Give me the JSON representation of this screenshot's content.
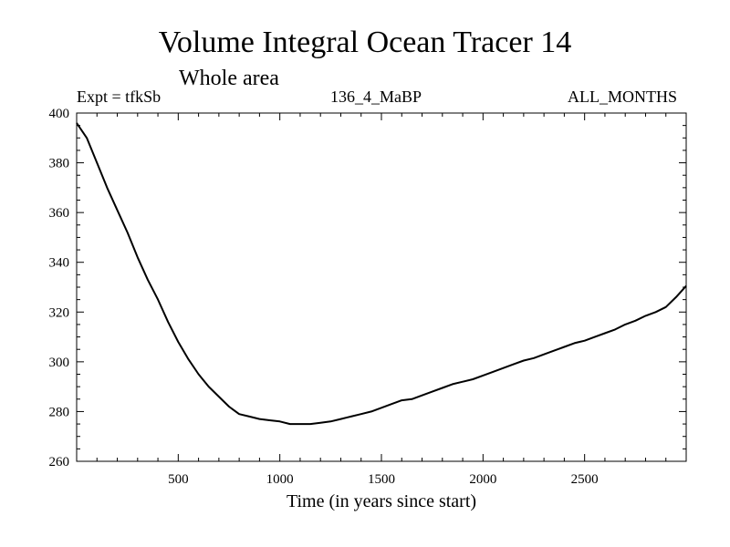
{
  "header": {
    "title": "Volume Integral Ocean Tracer 14",
    "subtitle": "Whole area",
    "experiment": "Expt = tfkSb",
    "run_label": "136_4_MaBP",
    "months": "ALL_MONTHS"
  },
  "chart_data": {
    "type": "line",
    "title": "Volume Integral Ocean Tracer 14",
    "subtitle": "Whole area",
    "xlabel": "Time (in years since start)",
    "ylabel": "",
    "xlim": [
      0,
      3000
    ],
    "ylim": [
      260,
      400
    ],
    "xticks": [
      500,
      1000,
      1500,
      2000,
      2500
    ],
    "yticks": [
      260,
      280,
      300,
      320,
      340,
      360,
      380,
      400
    ],
    "xtick_labels": [
      "500",
      "1000",
      "1500",
      "2000",
      "2500"
    ],
    "ytick_labels": [
      "260",
      "280",
      "300",
      "320",
      "340",
      "360",
      "380",
      "400"
    ],
    "grid": false,
    "series": [
      {
        "name": "Volume Integral Ocean Tracer 14",
        "color": "#000000",
        "x": [
          0,
          50,
          100,
          150,
          200,
          250,
          300,
          350,
          400,
          450,
          500,
          550,
          600,
          650,
          700,
          750,
          800,
          850,
          900,
          950,
          1000,
          1050,
          1100,
          1150,
          1200,
          1250,
          1300,
          1350,
          1400,
          1450,
          1500,
          1550,
          1600,
          1650,
          1700,
          1750,
          1800,
          1850,
          1900,
          1950,
          2000,
          2050,
          2100,
          2150,
          2200,
          2250,
          2300,
          2350,
          2400,
          2450,
          2500,
          2550,
          2600,
          2650,
          2700,
          2750,
          2800,
          2850,
          2900,
          2950,
          3000
        ],
        "y": [
          396,
          390,
          380,
          370,
          361,
          352,
          342,
          333,
          325,
          316,
          308,
          301,
          295,
          290,
          286,
          282,
          279,
          278,
          277,
          276.5,
          276,
          275,
          275,
          275,
          275.5,
          276,
          277,
          278,
          279,
          280,
          281.5,
          283,
          284.5,
          285,
          286.5,
          288,
          289.5,
          291,
          292,
          293,
          294.5,
          296,
          297.5,
          299,
          300.5,
          301.5,
          303,
          304.5,
          306,
          307.5,
          308.5,
          310,
          311.5,
          313,
          315,
          316.5,
          318.5,
          320,
          322,
          326,
          330.5
        ]
      }
    ]
  }
}
